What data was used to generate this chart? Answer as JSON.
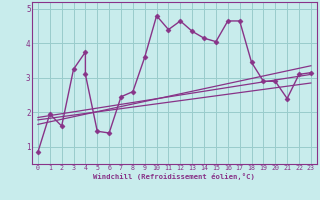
{
  "xlabel": "Windchill (Refroidissement éolien,°C)",
  "bg_color": "#c8ecec",
  "line_color": "#883388",
  "grid_color": "#99cccc",
  "xlim": [
    -0.5,
    23.5
  ],
  "ylim": [
    0.5,
    5.2
  ],
  "xticks": [
    0,
    1,
    2,
    3,
    4,
    5,
    6,
    7,
    8,
    9,
    10,
    11,
    12,
    13,
    14,
    15,
    16,
    17,
    18,
    19,
    20,
    21,
    22,
    23
  ],
  "yticks": [
    1,
    2,
    3,
    4,
    5
  ],
  "series": [
    {
      "x": [
        0,
        1,
        2,
        3,
        4,
        4,
        5,
        6,
        7,
        8,
        9,
        10,
        11,
        12,
        13,
        14,
        15,
        16,
        17,
        18,
        19,
        20,
        21,
        22,
        23
      ],
      "y": [
        0.85,
        1.95,
        1.6,
        3.25,
        3.75,
        3.1,
        1.45,
        1.4,
        2.45,
        2.6,
        3.6,
        4.8,
        4.4,
        4.65,
        4.35,
        4.15,
        4.05,
        4.65,
        4.65,
        3.45,
        2.9,
        2.9,
        2.4,
        3.1,
        3.15
      ],
      "marker": "D",
      "markersize": 2.5,
      "linewidth": 1.0
    },
    {
      "x": [
        0,
        23
      ],
      "y": [
        1.65,
        3.35
      ],
      "marker": null,
      "linewidth": 0.9
    },
    {
      "x": [
        0,
        23
      ],
      "y": [
        1.78,
        2.85
      ],
      "marker": null,
      "linewidth": 0.9
    },
    {
      "x": [
        0,
        23
      ],
      "y": [
        1.85,
        3.1
      ],
      "marker": null,
      "linewidth": 0.9
    }
  ]
}
